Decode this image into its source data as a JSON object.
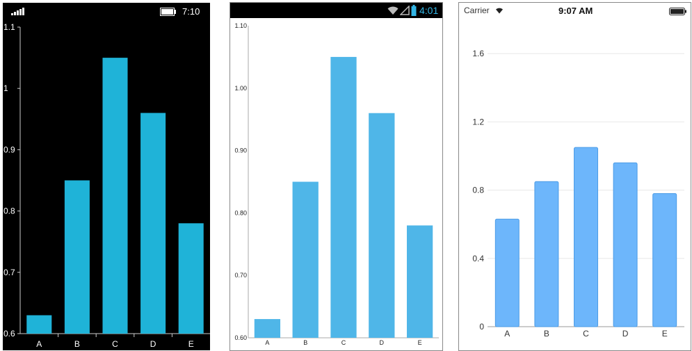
{
  "phones": [
    {
      "status": {
        "time": "7:10"
      },
      "colors": {
        "bar": "#1fb3d8",
        "background": "#000000",
        "text": "#ffffff"
      }
    },
    {
      "status": {
        "time": "4:01"
      },
      "colors": {
        "bar": "#4fb6e8",
        "background": "#ffffff",
        "text": "#222222",
        "statusbar": "#000000",
        "accent": "#33b5e5"
      }
    },
    {
      "status": {
        "carrier": "Carrier",
        "time": "9:07 AM"
      },
      "colors": {
        "bar": "#6db6fb",
        "bar_stroke": "#4a9be6",
        "background": "#ffffff",
        "text": "#333333"
      }
    }
  ],
  "chart_data": [
    {
      "type": "bar",
      "categories": [
        "A",
        "B",
        "C",
        "D",
        "E"
      ],
      "values": [
        0.63,
        0.85,
        1.05,
        0.96,
        0.78
      ],
      "ylim": [
        0.6,
        1.1
      ],
      "yticks": [
        "0.6",
        "0.7",
        "0.8",
        "0.9",
        "1",
        "1.1"
      ],
      "grid": false
    },
    {
      "type": "bar",
      "categories": [
        "A",
        "B",
        "C",
        "D",
        "E"
      ],
      "values": [
        0.63,
        0.85,
        1.05,
        0.96,
        0.78
      ],
      "ylim": [
        0.6,
        1.1
      ],
      "yticks": [
        "0.60",
        "0.70",
        "0.80",
        "0.90",
        "1.00",
        "1.10"
      ],
      "grid": false
    },
    {
      "type": "bar",
      "categories": [
        "A",
        "B",
        "C",
        "D",
        "E"
      ],
      "values": [
        0.63,
        0.85,
        1.05,
        0.96,
        0.78
      ],
      "ylim": [
        0,
        1.8
      ],
      "yticks": [
        "0",
        "0.4",
        "0.8",
        "1.2",
        "1.6"
      ],
      "grid": true
    }
  ]
}
